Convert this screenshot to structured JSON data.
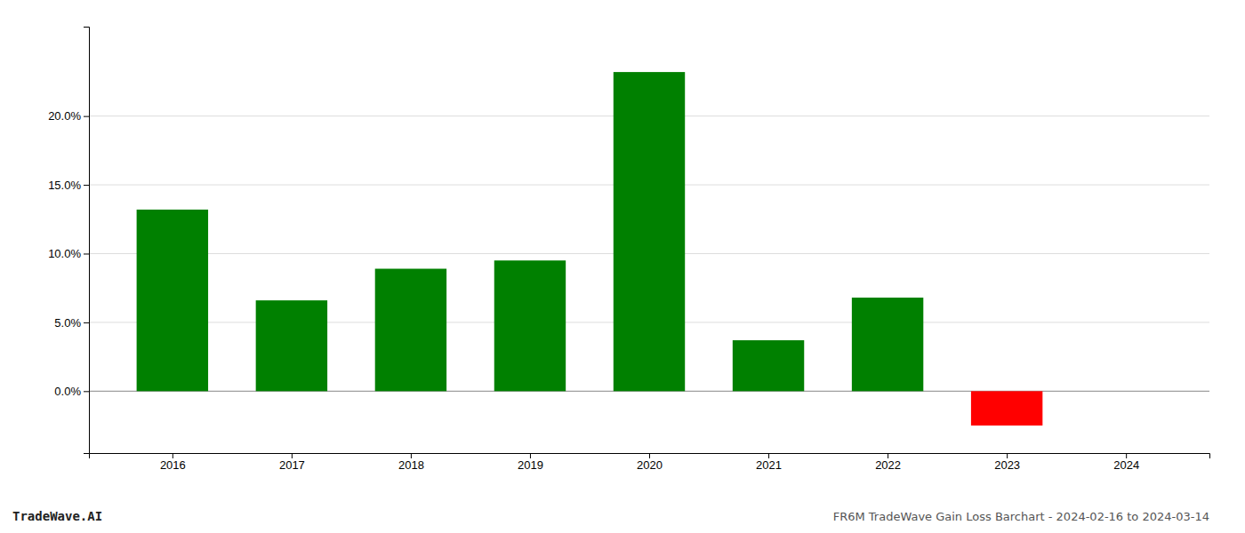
{
  "chart_data": {
    "type": "bar",
    "title": "FR6M TradeWave Gain Loss Barchart - 2024-02-16 to 2024-03-14",
    "annotations": [
      "TradeWave.AI"
    ],
    "x": [
      2016,
      2017,
      2018,
      2019,
      2020,
      2021,
      2022,
      2023,
      2024
    ],
    "values": [
      0.132,
      0.066,
      0.089,
      0.095,
      0.232,
      0.037,
      0.068,
      -0.025,
      null
    ],
    "colors": [
      "#008000",
      "#008000",
      "#008000",
      "#008000",
      "#008000",
      "#008000",
      "#008000",
      "#ff0000",
      null
    ],
    "xlim": [
      2015.3,
      2024.7
    ],
    "xticks": [
      2016,
      2017,
      2018,
      2019,
      2020,
      2021,
      2022,
      2023,
      2024
    ],
    "ylim": [
      -0.045,
      0.265
    ],
    "yticks": [
      {
        "value": 0.0,
        "label": "0.0%"
      },
      {
        "value": 0.05,
        "label": "5.0%"
      },
      {
        "value": 0.1,
        "label": "10.0%"
      },
      {
        "value": 0.15,
        "label": "15.0%"
      },
      {
        "value": 0.2,
        "label": "20.0%"
      }
    ],
    "grid": true
  }
}
